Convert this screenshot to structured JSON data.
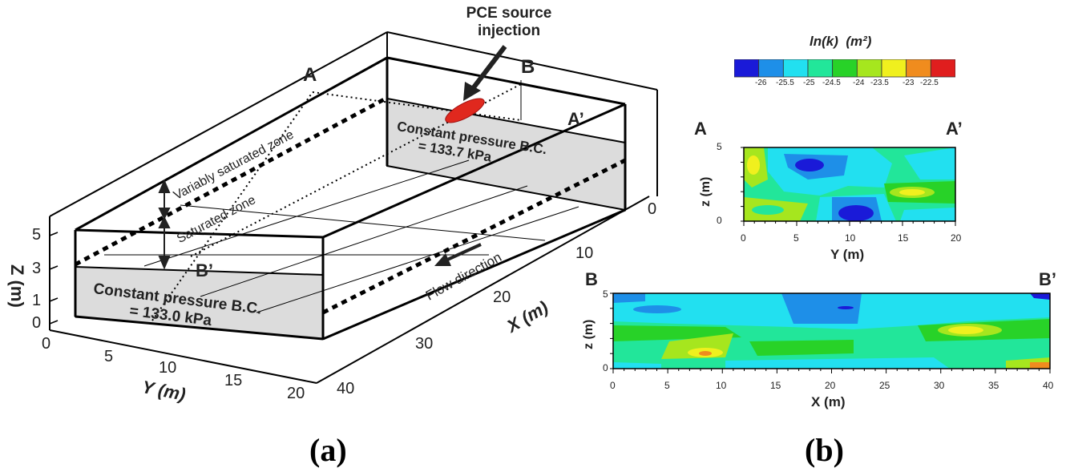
{
  "panel_a": {
    "caption": "(a)",
    "source_label_1": "PCE source",
    "source_label_2": "injection",
    "section_labels": {
      "A": "A",
      "A_prime": "A’",
      "B": "B",
      "B_prime": "B’"
    },
    "bc_back_1": "Constant pressure B.C.",
    "bc_back_2": "= 133.7 kPa",
    "bc_front_1": "Constant pressure B.C.",
    "bc_front_2": "= 133.0 kPa",
    "zone_variably": "Variably saturated zone",
    "zone_saturated": "Saturated zone",
    "flow": "Flow direction",
    "axes": {
      "z_label": "Z (m)",
      "z_ticks": [
        "5",
        "3",
        "1",
        "0"
      ],
      "y_label": "Y (m)",
      "y_ticks": [
        "0",
        "5",
        "10",
        "15",
        "20"
      ],
      "x_label": "X (m)",
      "x_ticks": [
        "0",
        "10",
        "20",
        "30",
        "40"
      ]
    },
    "colors": {
      "source": "#e0281e",
      "bc_face": "#dcdcdc"
    }
  },
  "panel_b": {
    "caption": "(b)",
    "colorbar": {
      "title_1": "ln(k)",
      "title_2": "(m²)",
      "ticks": [
        "-26",
        "-25.5",
        "-25",
        "-24.5",
        "-24",
        "-23.5",
        "-23",
        "-22.5"
      ],
      "colors": [
        "#1a1ad8",
        "#1e8fe8",
        "#22e0f0",
        "#22e69a",
        "#28d228",
        "#a6e61e",
        "#f0f01e",
        "#f08c1e",
        "#e01e1e"
      ]
    },
    "section_aa": {
      "left_label": "A",
      "right_label": "A’",
      "xlabel": "Y (m)",
      "ylabel": "z (m)",
      "xticks": [
        "0",
        "5",
        "10",
        "15",
        "20"
      ],
      "yticks": [
        "0",
        "5"
      ]
    },
    "section_bb": {
      "left_label": "B",
      "right_label": "B’",
      "xlabel": "X (m)",
      "ylabel": "z (m)",
      "xticks": [
        "0",
        "5",
        "10",
        "15",
        "20",
        "25",
        "30",
        "35",
        "40"
      ],
      "yticks": [
        "0",
        "5"
      ]
    }
  }
}
